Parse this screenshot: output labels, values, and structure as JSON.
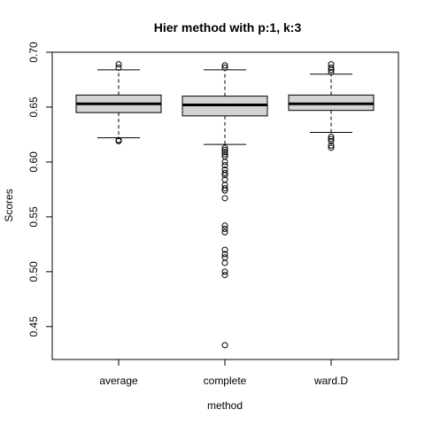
{
  "chart_data": {
    "type": "boxplot",
    "title": "Hier method with p:1, k:3",
    "xlabel": "method",
    "ylabel": "Scores",
    "ylim": [
      0.42,
      0.7
    ],
    "yticks": [
      0.45,
      0.5,
      0.55,
      0.6,
      0.65,
      0.7
    ],
    "ytick_labels": [
      "0.45",
      "0.50",
      "0.55",
      "0.60",
      "0.65",
      "0.70"
    ],
    "categories": [
      "average",
      "complete",
      "ward.D"
    ],
    "box_color": "#d3d3d3",
    "boxes": [
      {
        "name": "average",
        "whisker_low": 0.622,
        "q1": 0.645,
        "median": 0.653,
        "q3": 0.661,
        "whisker_high": 0.684,
        "outliers": [
          0.619,
          0.62,
          0.686,
          0.689
        ]
      },
      {
        "name": "complete",
        "whisker_low": 0.616,
        "q1": 0.642,
        "median": 0.652,
        "q3": 0.66,
        "whisker_high": 0.684,
        "outliers": [
          0.613,
          0.611,
          0.609,
          0.607,
          0.605,
          0.6,
          0.597,
          0.593,
          0.59,
          0.588,
          0.584,
          0.579,
          0.576,
          0.574,
          0.567,
          0.542,
          0.539,
          0.536,
          0.52,
          0.516,
          0.513,
          0.508,
          0.5,
          0.497,
          0.433,
          0.686,
          0.688
        ]
      },
      {
        "name": "ward.D",
        "whisker_low": 0.627,
        "q1": 0.647,
        "median": 0.653,
        "q3": 0.661,
        "whisker_high": 0.68,
        "outliers": [
          0.623,
          0.621,
          0.619,
          0.615,
          0.613,
          0.682,
          0.684,
          0.686,
          0.689
        ]
      }
    ]
  }
}
